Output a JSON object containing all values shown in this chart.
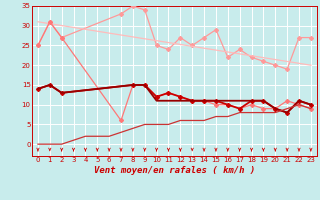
{
  "background_color": "#c8ecec",
  "grid_color": "#ffffff",
  "xlabel": "Vent moyen/en rafales ( km/h )",
  "xlim": [
    -0.5,
    23.5
  ],
  "ylim": [
    -3,
    35
  ],
  "yticks": [
    0,
    5,
    10,
    15,
    20,
    25,
    30,
    35
  ],
  "xticks": [
    0,
    1,
    2,
    3,
    4,
    5,
    6,
    7,
    8,
    9,
    10,
    11,
    12,
    13,
    14,
    15,
    16,
    17,
    18,
    19,
    20,
    21,
    22,
    23
  ],
  "series": [
    {
      "name": "light_pink_rafales",
      "x": [
        0,
        1,
        2,
        7,
        8,
        9,
        10,
        11,
        12,
        13,
        14,
        15,
        16,
        17,
        18,
        19,
        20,
        21,
        22,
        23
      ],
      "y": [
        25,
        31,
        27,
        33,
        35,
        34,
        25,
        24,
        27,
        25,
        27,
        29,
        22,
        24,
        22,
        21,
        20,
        19,
        27,
        27
      ],
      "color": "#ff9999",
      "linewidth": 0.9,
      "marker": "D",
      "markersize": 2.0
    },
    {
      "name": "light_pink_trend",
      "x": [
        0,
        23
      ],
      "y": [
        31,
        20
      ],
      "color": "#ffbbbb",
      "linewidth": 0.9,
      "marker": null,
      "markersize": 0
    },
    {
      "name": "medium_pink_rafales",
      "x": [
        0,
        1,
        2,
        7,
        8,
        9,
        10,
        11,
        12,
        13,
        14,
        15,
        16,
        17,
        18,
        19,
        20,
        21,
        22,
        23
      ],
      "y": [
        25,
        31,
        27,
        6,
        15,
        15,
        12,
        13,
        12,
        11,
        11,
        10,
        10,
        9,
        10,
        9,
        9,
        11,
        10,
        9
      ],
      "color": "#ff7777",
      "linewidth": 0.9,
      "marker": "D",
      "markersize": 2.0
    },
    {
      "name": "dark_red_mean1",
      "x": [
        0,
        1,
        2,
        8,
        9,
        10,
        11,
        12,
        13,
        14,
        15,
        16,
        17,
        18,
        19,
        20,
        21,
        22,
        23
      ],
      "y": [
        14,
        15,
        13,
        15,
        15,
        12,
        13,
        12,
        11,
        11,
        11,
        10,
        9,
        11,
        11,
        9,
        8,
        11,
        10
      ],
      "color": "#cc0000",
      "linewidth": 1.3,
      "marker": "D",
      "markersize": 2.0
    },
    {
      "name": "dark_red_mean2_flat",
      "x": [
        0,
        1,
        2,
        8,
        9,
        10,
        11,
        12,
        13,
        14,
        15,
        16,
        17,
        18,
        19,
        20,
        21,
        22,
        23
      ],
      "y": [
        14,
        15,
        13,
        15,
        15,
        11,
        11,
        11,
        11,
        11,
        11,
        11,
        11,
        11,
        11,
        9,
        8,
        11,
        10
      ],
      "color": "#990000",
      "linewidth": 1.3,
      "marker": null,
      "markersize": 0
    },
    {
      "name": "ascending_base",
      "x": [
        0,
        1,
        2,
        3,
        4,
        5,
        6,
        7,
        8,
        9,
        10,
        11,
        12,
        13,
        14,
        15,
        16,
        17,
        18,
        19,
        20,
        21,
        22,
        23
      ],
      "y": [
        0,
        0,
        0,
        1,
        2,
        2,
        2,
        3,
        4,
        5,
        5,
        5,
        6,
        6,
        6,
        7,
        7,
        8,
        8,
        8,
        8,
        9,
        10,
        9
      ],
      "color": "#cc3333",
      "linewidth": 0.9,
      "marker": null,
      "markersize": 0
    }
  ],
  "arrow_color": "#cc0000",
  "xlabel_fontsize": 6.5,
  "tick_fontsize": 5.0
}
